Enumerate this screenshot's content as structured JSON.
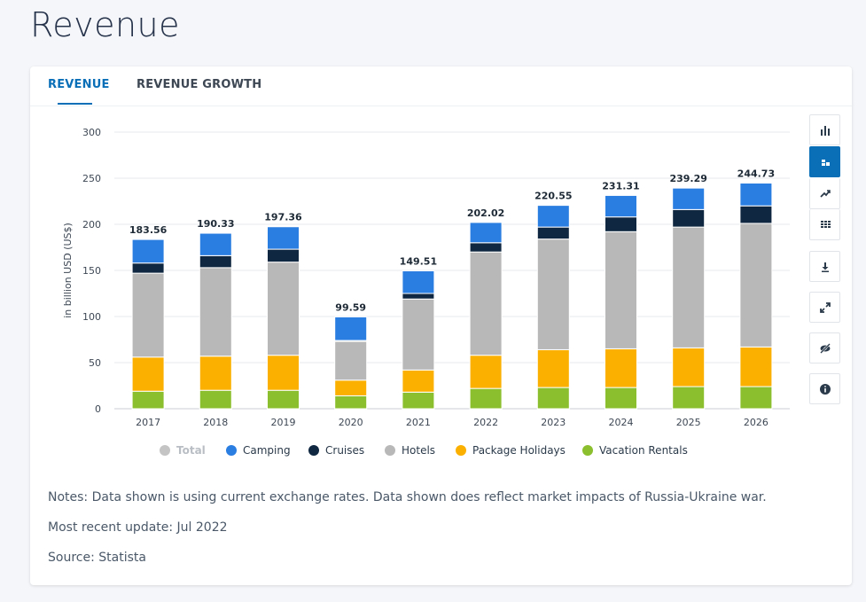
{
  "page": {
    "title": "Revenue"
  },
  "tabs": [
    {
      "label": "REVENUE",
      "active": true
    },
    {
      "label": "REVENUE GROWTH",
      "active": false
    }
  ],
  "toolbar": [
    {
      "icon": "bar-chart-icon",
      "active": false
    },
    {
      "icon": "stacked-bar-icon",
      "active": true
    },
    {
      "icon": "trend-line-icon",
      "active": false
    },
    {
      "icon": "table-grid-icon",
      "active": false
    },
    {
      "icon": "download-icon",
      "active": false
    },
    {
      "icon": "fullscreen-icon",
      "active": false
    },
    {
      "icon": "hide-icon",
      "active": false
    },
    {
      "icon": "info-icon",
      "active": false
    }
  ],
  "chart_data": {
    "type": "bar",
    "stacked": true,
    "categories": [
      "2017",
      "2018",
      "2019",
      "2020",
      "2021",
      "2022",
      "2023",
      "2024",
      "2025",
      "2026"
    ],
    "ylabel": "in billion USD (US$)",
    "ylim": [
      0,
      300
    ],
    "yticks": [
      0,
      50,
      100,
      150,
      200,
      250,
      300
    ],
    "grid": true,
    "legend_position": "bottom",
    "totals_label": "Total",
    "totals": [
      "183.56",
      "190.33",
      "197.36",
      "99.59",
      "149.51",
      "202.02",
      "220.55",
      "231.31",
      "239.29",
      "244.73"
    ],
    "series": [
      {
        "name": "Vacation Rentals",
        "color": "#8cbf2e",
        "values": [
          19.0,
          20.0,
          20.0,
          14.0,
          18.0,
          22.0,
          23.0,
          23.0,
          24.0,
          24.0
        ]
      },
      {
        "name": "Package Holidays",
        "color": "#fbb000",
        "values": [
          37.0,
          37.0,
          38.0,
          17.0,
          24.0,
          36.0,
          41.0,
          42.0,
          42.0,
          43.0
        ]
      },
      {
        "name": "Hotels",
        "color": "#b8b8b8",
        "values": [
          91.0,
          96.0,
          101.0,
          42.0,
          77.0,
          112.0,
          120.0,
          127.0,
          131.0,
          134.0
        ]
      },
      {
        "name": "Cruises",
        "color": "#0f2740",
        "values": [
          11.0,
          13.0,
          14.0,
          1.0,
          6.0,
          10.0,
          13.0,
          16.0,
          19.0,
          19.0
        ]
      },
      {
        "name": "Camping",
        "color": "#2a7de1",
        "values": [
          25.56,
          24.33,
          24.36,
          25.59,
          24.51,
          22.02,
          23.55,
          23.31,
          23.29,
          24.73
        ]
      }
    ],
    "legend": [
      {
        "name": "Total",
        "color": "#c4c4c4",
        "muted": true
      },
      {
        "name": "Camping",
        "color": "#2a7de1"
      },
      {
        "name": "Cruises",
        "color": "#0f2740"
      },
      {
        "name": "Hotels",
        "color": "#b8b8b8"
      },
      {
        "name": "Package Holidays",
        "color": "#fbb000"
      },
      {
        "name": "Vacation Rentals",
        "color": "#8cbf2e"
      }
    ]
  },
  "notes": {
    "line1": "Notes: Data shown is using current exchange rates. Data shown does reflect market impacts of Russia-Ukraine war.",
    "line2": "Most recent update: Jul 2022",
    "line3": "Source: Statista"
  }
}
